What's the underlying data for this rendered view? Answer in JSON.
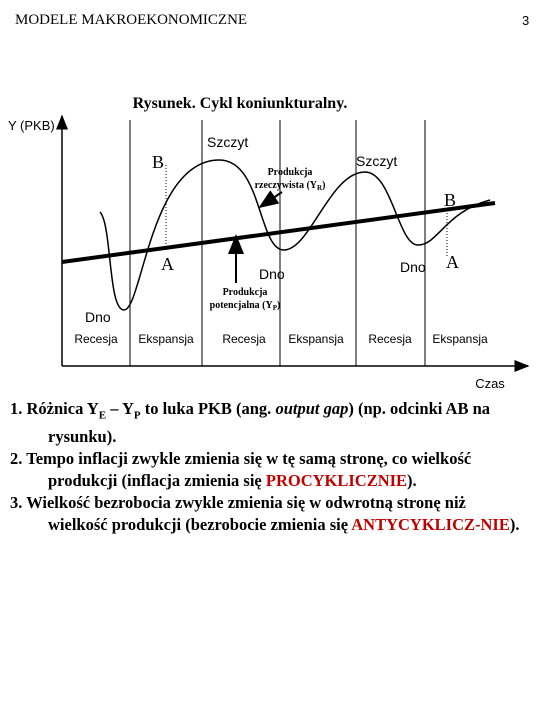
{
  "header": {
    "title": "MODELE MAKROEKONOMICZNE",
    "page_number": "3"
  },
  "figure": {
    "title": "Rysunek. Cykl koniunkturalny.",
    "y_axis_label": "Y (PKB)",
    "x_axis_label": "Czas",
    "labels": [
      "Szczyt",
      "B",
      "Szczyt",
      "B",
      "A",
      "Dno",
      "Dno",
      "A",
      "Dno"
    ],
    "actual_output": [
      "Produkcja",
      "rzeczywista (Y",
      "R",
      ")"
    ],
    "potential_output": [
      "Produkcja",
      "potencjalna (Y",
      "P",
      ")"
    ],
    "phases": [
      "Recesja",
      "Ekspansja",
      "Recesja",
      "Ekspansja",
      "Recesja",
      "Ekspansja"
    ]
  },
  "points": [
    [
      "1. Różnica Y",
      "E",
      " – Y",
      "P",
      " to luka PKB (ang. ",
      "output gap",
      ") (np. odcinki AB na rysunku)."
    ],
    [
      "2. Tempo inflacji zwykle zmienia się w tę samą stronę, co wielkość produkcji (inflacja zmienia się ",
      "PROCYKLICZNIE",
      ")."
    ],
    [
      "3.  Wielkość bezrobocia zwykle zmienia się w odwrotną  stronę niż wielkość produkcji (bezrobocie zmienia się ",
      "ANTYCYKLICZ-NIE",
      ")."
    ]
  ]
}
